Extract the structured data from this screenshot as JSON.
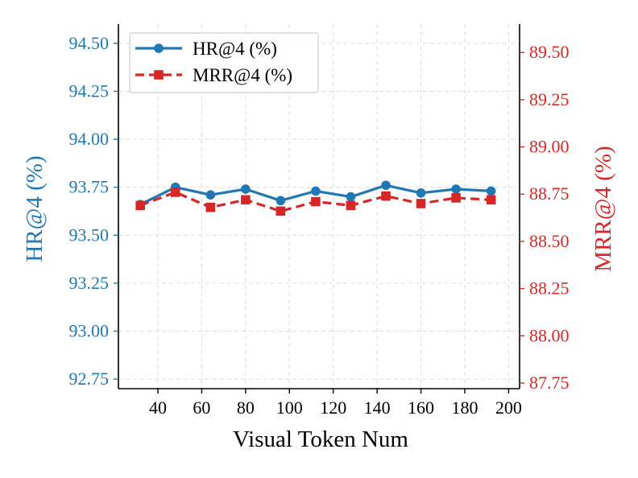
{
  "chart_data": {
    "type": "line",
    "title": "",
    "xlabel": "Visual Token Num",
    "ylabel_left": "HR@4 (%)",
    "ylabel_right": "MRR@4 (%)",
    "xlim": [
      22,
      205
    ],
    "xticks": [
      40,
      60,
      80,
      100,
      120,
      140,
      160,
      180,
      200
    ],
    "xtick_labels": [
      "40",
      "60",
      "80",
      "100",
      "120",
      "140",
      "160",
      "180",
      "200"
    ],
    "ylim_left": [
      92.7,
      94.6
    ],
    "yticks_left": [
      92.75,
      93.0,
      93.25,
      93.5,
      93.75,
      94.0,
      94.25,
      94.5
    ],
    "ytick_labels_left": [
      "92.75",
      "93.00",
      "93.25",
      "93.50",
      "93.75",
      "94.00",
      "94.25",
      "94.50"
    ],
    "ylim_right": [
      87.72,
      89.65
    ],
    "yticks_right": [
      87.75,
      88.0,
      88.25,
      88.5,
      88.75,
      89.0,
      89.25,
      89.5
    ],
    "ytick_labels_right": [
      "87.75",
      "88.00",
      "88.25",
      "88.50",
      "88.75",
      "89.00",
      "89.25",
      "89.50"
    ],
    "grid": true,
    "legend_position": "top-left",
    "x": [
      32,
      48,
      64,
      80,
      96,
      112,
      128,
      144,
      160,
      176,
      192
    ],
    "series": [
      {
        "name": "HR@4 (%)",
        "axis": "left",
        "color": "#1f77b4",
        "marker": "circle",
        "linestyle": "solid",
        "values": [
          93.66,
          93.75,
          93.71,
          93.74,
          93.68,
          93.73,
          93.7,
          93.76,
          93.72,
          93.74,
          93.73
        ]
      },
      {
        "name": "MRR@4 (%)",
        "axis": "right",
        "color": "#d62728",
        "marker": "square",
        "linestyle": "dashed",
        "values": [
          88.69,
          88.76,
          88.68,
          88.72,
          88.66,
          88.71,
          88.69,
          88.74,
          88.7,
          88.73,
          88.72
        ]
      }
    ],
    "colors": {
      "left_axis": "#1f77b4",
      "right_axis": "#d62728",
      "grid": "#dcdcdc",
      "spine": "#000000"
    }
  }
}
